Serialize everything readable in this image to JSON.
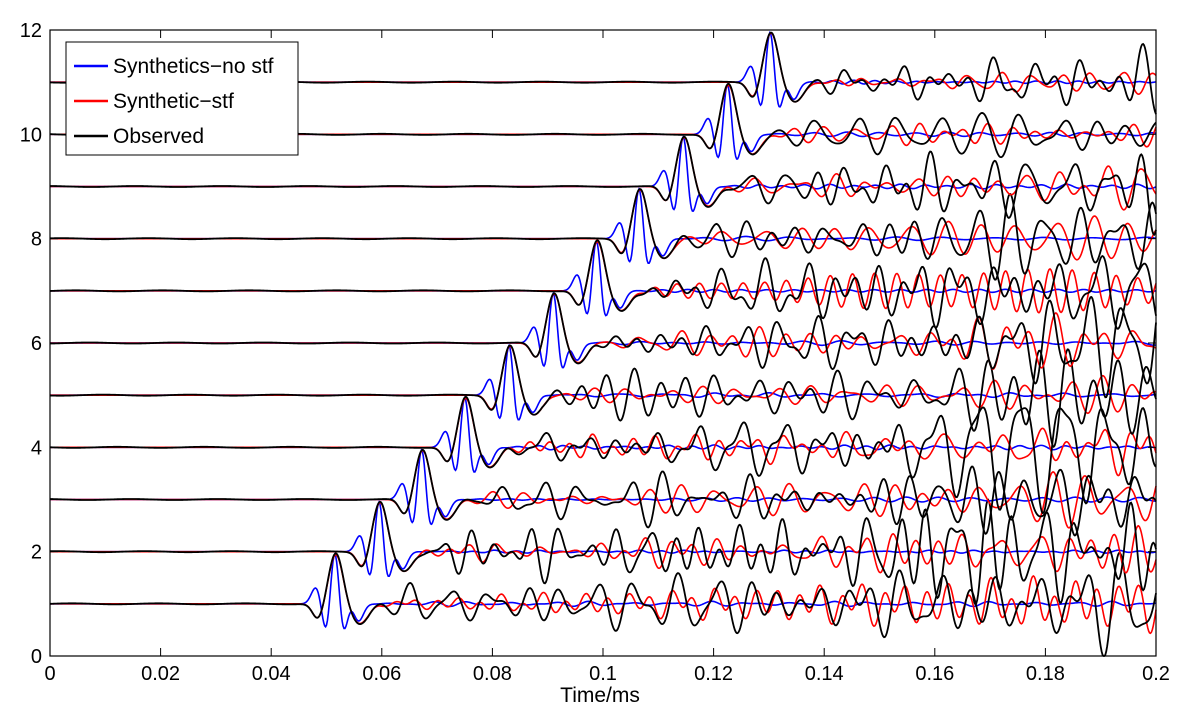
{
  "chart_data": {
    "type": "line",
    "title": "",
    "xlabel": "Time/ms",
    "ylabel": "",
    "xlim": [
      0,
      0.2
    ],
    "ylim": [
      0,
      12
    ],
    "grid": false,
    "legend_position": "top-left",
    "x_ticks": [
      "0",
      "0.02",
      "0.04",
      "0.06",
      "0.08",
      "0.1",
      "0.12",
      "0.14",
      "0.16",
      "0.18",
      "0.2"
    ],
    "y_ticks": [
      "0",
      "2",
      "4",
      "6",
      "8",
      "10",
      "12"
    ],
    "trace_baselines": [
      1,
      2,
      3,
      4,
      5,
      6,
      7,
      8,
      9,
      10,
      11
    ],
    "first_arrival_times": [
      0.0515,
      0.0595,
      0.0672,
      0.075,
      0.083,
      0.091,
      0.0988,
      0.1065,
      0.1145,
      0.1225,
      0.1302
    ],
    "series": [
      {
        "name": "Synthetics−no stf",
        "color": "#0000ff"
      },
      {
        "name": "Synthetic−stf",
        "color": "#ff0000"
      },
      {
        "name": "Observed",
        "color": "#000000"
      }
    ]
  }
}
